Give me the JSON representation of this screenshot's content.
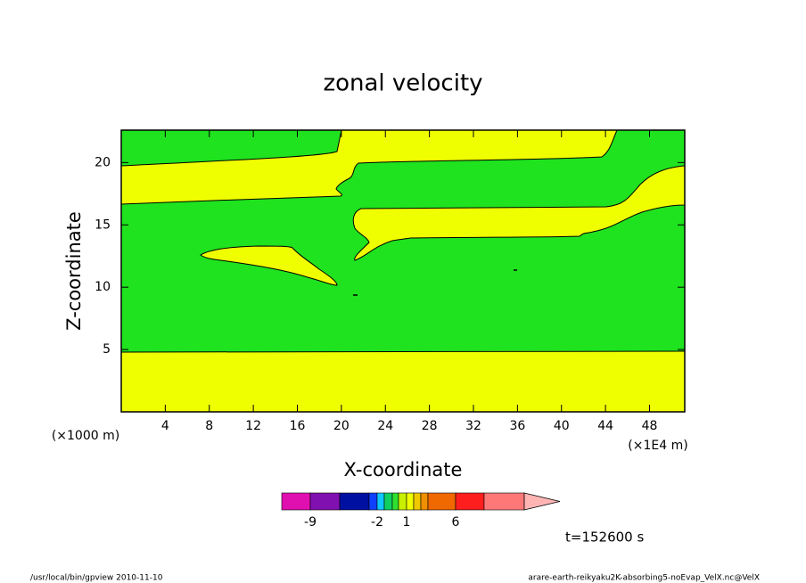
{
  "chart_data": {
    "type": "contour",
    "title": "zonal velocity",
    "x_label": "X-coordinate",
    "y_label": "Z-coordinate",
    "x_unit_left": "(×1000 m)",
    "x_unit_right": "(×1E4 m)",
    "xlim": [
      0,
      51.2
    ],
    "xticks": [
      4,
      8,
      12,
      16,
      20,
      24,
      28,
      32,
      36,
      40,
      44,
      48
    ],
    "ylim": [
      0,
      22.6
    ],
    "yticks": [
      5,
      10,
      15,
      20
    ],
    "colorbar": {
      "levels": [
        -12,
        -9,
        -6,
        -3,
        -2,
        -1,
        0,
        0.5,
        1,
        2,
        3,
        4,
        6,
        9,
        12
      ],
      "colors": [
        "#e010b0",
        "#8010b0",
        "#0010a0",
        "#1040ff",
        "#10c8ff",
        "#10d060",
        "#30e030",
        "#c8f000",
        "#f0ff00",
        "#f0c800",
        "#f09000",
        "#f06800",
        "#ff1e1e",
        "#ff7878"
      ],
      "extend_color": "#ffb4b4",
      "ticks": [
        -9,
        -2,
        1,
        6
      ]
    },
    "time_label": "t=152600 s",
    "footer_left": "/usr/local/bin/gpview  2010-11-10",
    "footer_right": "arare-earth-reikyaku2K-absorbing5-noEvap_VelX.nc@VelX"
  }
}
